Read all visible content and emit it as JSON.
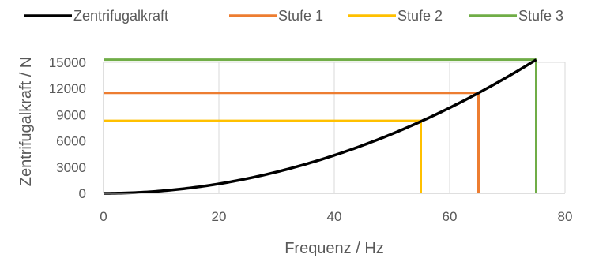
{
  "chart_data": {
    "type": "line",
    "title": "",
    "xlabel": "Frequenz / Hz",
    "ylabel": "Zentrifugalkraft / N",
    "xlim": [
      0,
      80
    ],
    "ylim": [
      0,
      15000
    ],
    "xticks": [
      0,
      20,
      40,
      60,
      80
    ],
    "yticks": [
      0,
      3000,
      6000,
      9000,
      12000,
      15000
    ],
    "grid": "vertical",
    "legend_position": "top",
    "series": [
      {
        "name": "Zentrifugalkraft",
        "color": "#000000",
        "curve": "quadratic",
        "x": [
          0,
          10,
          20,
          30,
          40,
          50,
          55,
          60,
          65,
          70,
          75
        ],
        "y": [
          0,
          272,
          1088,
          2448,
          4352,
          6800,
          8228,
          9792,
          11492,
          13328,
          15300
        ]
      },
      {
        "name": "Stufe 1",
        "color": "#ED7D31",
        "x": [
          0,
          65,
          65
        ],
        "y": [
          11500,
          11500,
          0
        ]
      },
      {
        "name": "Stufe 2",
        "color": "#FFC000",
        "x": [
          0,
          55,
          55
        ],
        "y": [
          8300,
          8300,
          0
        ]
      },
      {
        "name": "Stufe 3",
        "color": "#70AD47",
        "x": [
          0,
          75,
          75
        ],
        "y": [
          15300,
          15300,
          0
        ]
      }
    ]
  }
}
